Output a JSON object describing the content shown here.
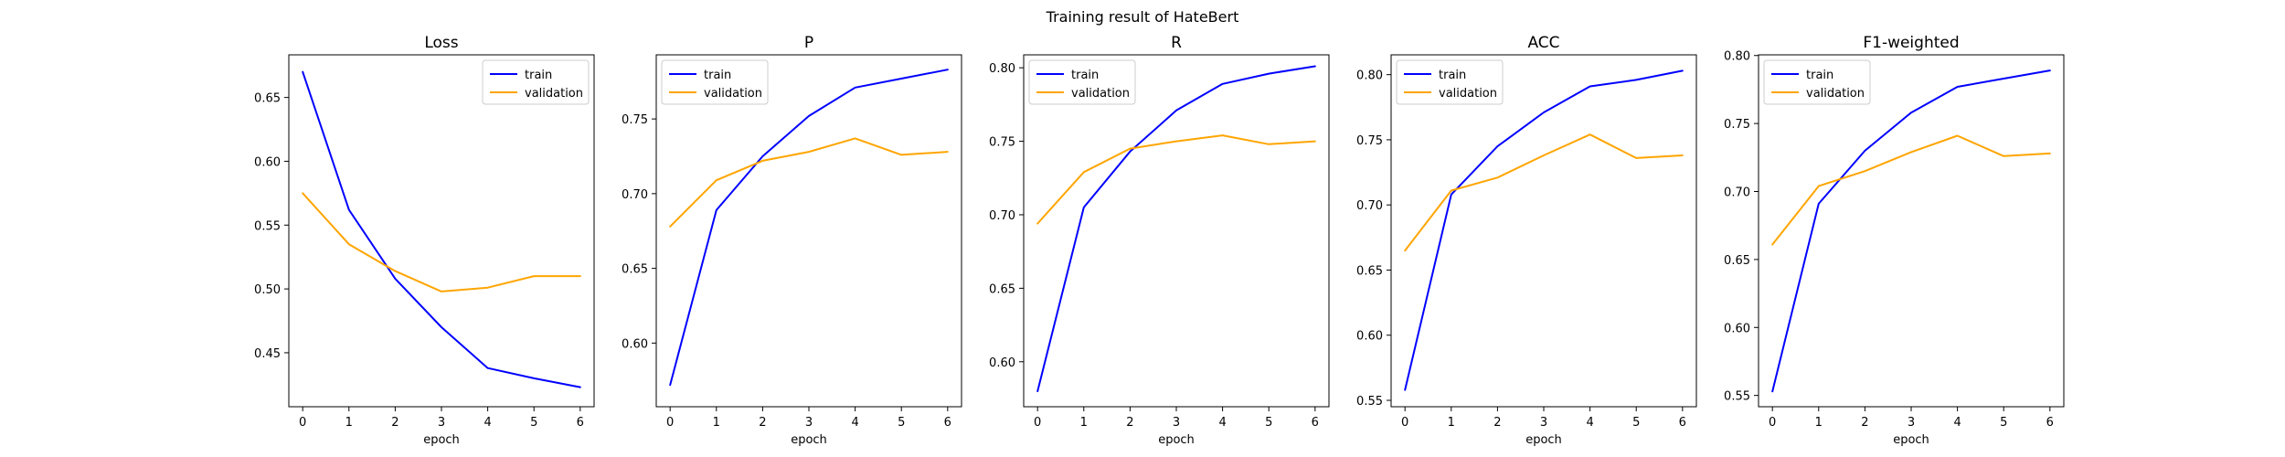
{
  "figure": {
    "suptitle": "Training result of HateBert",
    "colors": {
      "train": "#0000ff",
      "validation": "#ffa500",
      "axis": "#000000",
      "background": "#ffffff"
    }
  },
  "chart_data": [
    {
      "type": "line",
      "title": "Loss",
      "xlabel": "epoch",
      "ylabel": "",
      "x": [
        0,
        1,
        2,
        3,
        4,
        5,
        6
      ],
      "xlim": [
        -0.3,
        6.3
      ],
      "ylim": [
        0.4077,
        0.6834
      ],
      "yticks": [
        "0.45",
        "0.50",
        "0.55",
        "0.60",
        "0.65"
      ],
      "ytick_values": [
        0.45,
        0.5,
        0.55,
        0.6,
        0.65
      ],
      "xticks": [
        "0",
        "1",
        "2",
        "3",
        "4",
        "5",
        "6"
      ],
      "legend": "top-right",
      "grid": false,
      "series": [
        {
          "name": "train",
          "color": "#0000ff",
          "values": [
            0.67,
            0.562,
            0.508,
            0.47,
            0.438,
            0.43,
            0.423
          ]
        },
        {
          "name": "validation",
          "color": "#ffa500",
          "values": [
            0.575,
            0.535,
            0.514,
            0.498,
            0.501,
            0.51,
            0.51
          ]
        }
      ]
    },
    {
      "type": "line",
      "title": "P",
      "xlabel": "epoch",
      "ylabel": "",
      "x": [
        0,
        1,
        2,
        3,
        4,
        5,
        6
      ],
      "xlim": [
        -0.3,
        6.3
      ],
      "ylim": [
        0.5574,
        0.7929
      ],
      "yticks": [
        "0.60",
        "0.65",
        "0.70",
        "0.75"
      ],
      "ytick_values": [
        0.6,
        0.65,
        0.7,
        0.75
      ],
      "xticks": [
        "0",
        "1",
        "2",
        "3",
        "4",
        "5",
        "6"
      ],
      "legend": "top-left",
      "grid": false,
      "series": [
        {
          "name": "train",
          "color": "#0000ff",
          "values": [
            0.572,
            0.689,
            0.725,
            0.752,
            0.771,
            0.777,
            0.783
          ]
        },
        {
          "name": "validation",
          "color": "#ffa500",
          "values": [
            0.678,
            0.709,
            0.722,
            0.728,
            0.737,
            0.726,
            0.728
          ]
        }
      ]
    },
    {
      "type": "line",
      "title": "R",
      "xlabel": "epoch",
      "ylabel": "",
      "x": [
        0,
        1,
        2,
        3,
        4,
        5,
        6
      ],
      "xlim": [
        -0.3,
        6.3
      ],
      "ylim": [
        0.5694,
        0.8088
      ],
      "yticks": [
        "0.60",
        "0.65",
        "0.70",
        "0.75",
        "0.80"
      ],
      "ytick_values": [
        0.6,
        0.65,
        0.7,
        0.75,
        0.8
      ],
      "xticks": [
        "0",
        "1",
        "2",
        "3",
        "4",
        "5",
        "6"
      ],
      "legend": "top-left",
      "grid": false,
      "series": [
        {
          "name": "train",
          "color": "#0000ff",
          "values": [
            0.58,
            0.705,
            0.743,
            0.771,
            0.789,
            0.796,
            0.801
          ]
        },
        {
          "name": "validation",
          "color": "#ffa500",
          "values": [
            0.694,
            0.729,
            0.745,
            0.75,
            0.754,
            0.748,
            0.75
          ]
        }
      ]
    },
    {
      "type": "line",
      "title": "ACC",
      "xlabel": "epoch",
      "ylabel": "",
      "x": [
        0,
        1,
        2,
        3,
        4,
        5,
        6
      ],
      "xlim": [
        -0.3,
        6.3
      ],
      "ylim": [
        0.5451,
        0.8152
      ],
      "yticks": [
        "0.55",
        "0.60",
        "0.65",
        "0.70",
        "0.75",
        "0.80"
      ],
      "ytick_values": [
        0.55,
        0.6,
        0.65,
        0.7,
        0.75,
        0.8
      ],
      "xticks": [
        "0",
        "1",
        "2",
        "3",
        "4",
        "5",
        "6"
      ],
      "legend": "top-left",
      "grid": false,
      "series": [
        {
          "name": "train",
          "color": "#0000ff",
          "values": [
            0.558,
            0.708,
            0.745,
            0.771,
            0.791,
            0.796,
            0.803
          ]
        },
        {
          "name": "validation",
          "color": "#ffa500",
          "values": [
            0.665,
            0.711,
            0.721,
            0.738,
            0.754,
            0.736,
            0.738
          ]
        }
      ]
    },
    {
      "type": "line",
      "title": "F1-weighted",
      "xlabel": "epoch",
      "ylabel": "",
      "x": [
        0,
        1,
        2,
        3,
        4,
        5,
        6
      ],
      "xlim": [
        -0.3,
        6.3
      ],
      "ylim": [
        0.5417,
        0.8005
      ],
      "yticks": [
        "0.55",
        "0.60",
        "0.65",
        "0.70",
        "0.75",
        "0.80"
      ],
      "ytick_values": [
        0.55,
        0.6,
        0.65,
        0.7,
        0.75,
        0.8
      ],
      "xticks": [
        "0",
        "1",
        "2",
        "3",
        "4",
        "5",
        "6"
      ],
      "legend": "top-left",
      "grid": false,
      "series": [
        {
          "name": "train",
          "color": "#0000ff",
          "values": [
            0.553,
            0.691,
            0.73,
            0.758,
            0.777,
            0.783,
            0.789
          ]
        },
        {
          "name": "validation",
          "color": "#ffa500",
          "values": [
            0.661,
            0.704,
            0.715,
            0.729,
            0.741,
            0.726,
            0.728
          ]
        }
      ]
    }
  ]
}
